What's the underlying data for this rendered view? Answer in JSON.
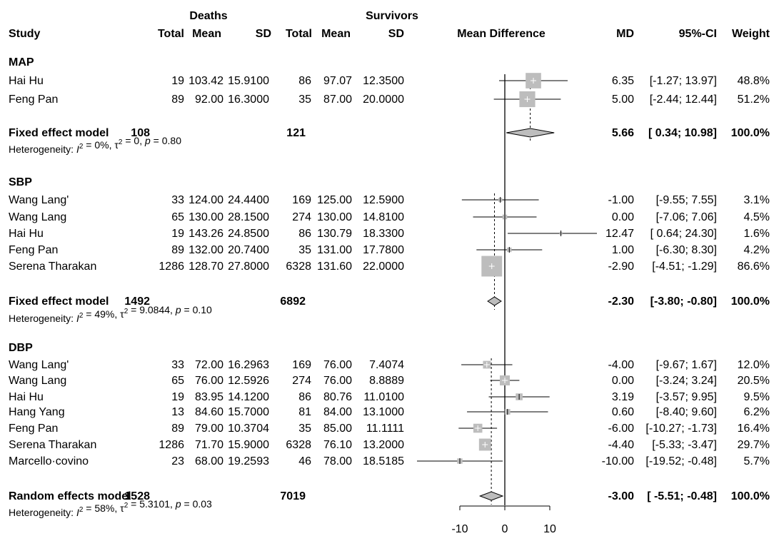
{
  "header": {
    "deaths": "Deaths",
    "survivors": "Survivors",
    "columns": [
      "Study",
      "Total",
      "Mean",
      "SD",
      "Total",
      "Mean",
      "SD",
      "Mean Difference",
      "MD",
      "95%-CI",
      "Weight"
    ]
  },
  "chart_data": {
    "type": "forest",
    "xaxis": {
      "ticks": [
        -10,
        0,
        10
      ],
      "labels": [
        "-10",
        "0",
        "10"
      ],
      "range": [
        -10,
        10
      ]
    },
    "groups": [
      {
        "name": "MAP",
        "studies": [
          {
            "study": "Hai Hu",
            "d_total": "19",
            "d_mean": "103.42",
            "d_sd": "15.9100",
            "s_total": "86",
            "s_mean": "97.07",
            "s_sd": "12.3500",
            "md": 6.35,
            "lo": -1.27,
            "hi": 13.97,
            "md_text": "6.35",
            "ci_text": "[-1.27; 13.97]",
            "weight": 48.8,
            "weight_text": "48.8%"
          },
          {
            "study": "Feng Pan",
            "d_total": "89",
            "d_mean": "92.00",
            "d_sd": "16.3000",
            "s_total": "35",
            "s_mean": "87.00",
            "s_sd": "20.0000",
            "md": 5.0,
            "lo": -2.44,
            "hi": 12.44,
            "md_text": "5.00",
            "ci_text": "[-2.44; 12.44]",
            "weight": 51.2,
            "weight_text": "51.2%"
          }
        ],
        "pooled": {
          "label": "Fixed effect model",
          "d_total": "108",
          "s_total": "121",
          "md": 5.66,
          "lo": 0.34,
          "hi": 10.98,
          "md_text": "5.66",
          "ci_text": "[ 0.34; 10.98]",
          "weight_text": "100.0%"
        },
        "het": {
          "prefix": "Heterogeneity: ",
          "i2": "I",
          "i2_val": " = 0%, ",
          "tau": "τ",
          "tau_val": " = 0, ",
          "p": "p",
          "p_val": " = 0.80"
        }
      },
      {
        "name": "SBP",
        "studies": [
          {
            "study": "Wang Lang'",
            "d_total": "33",
            "d_mean": "124.00",
            "d_sd": "24.4400",
            "s_total": "169",
            "s_mean": "125.00",
            "s_sd": "12.5900",
            "md": -1.0,
            "lo": -9.55,
            "hi": 7.55,
            "md_text": "-1.00",
            "ci_text": "[-9.55; 7.55]",
            "weight": 3.1,
            "weight_text": "3.1%"
          },
          {
            "study": "Wang Lang",
            "d_total": "65",
            "d_mean": "130.00",
            "d_sd": "28.1500",
            "s_total": "274",
            "s_mean": "130.00",
            "s_sd": "14.8100",
            "md": 0.0,
            "lo": -7.06,
            "hi": 7.06,
            "md_text": "0.00",
            "ci_text": "[-7.06; 7.06]",
            "weight": 4.5,
            "weight_text": "4.5%"
          },
          {
            "study": "Hai Hu",
            "d_total": "19",
            "d_mean": "143.26",
            "d_sd": "24.8500",
            "s_total": "86",
            "s_mean": "130.79",
            "s_sd": "18.3300",
            "md": 12.47,
            "lo": 0.64,
            "hi": 24.3,
            "md_text": "12.47",
            "ci_text": "[ 0.64; 24.30]",
            "weight": 1.6,
            "weight_text": "1.6%"
          },
          {
            "study": "Feng Pan",
            "d_total": "89",
            "d_mean": "132.00",
            "d_sd": "20.7400",
            "s_total": "35",
            "s_mean": "131.00",
            "s_sd": "17.7800",
            "md": 1.0,
            "lo": -6.3,
            "hi": 8.3,
            "md_text": "1.00",
            "ci_text": "[-6.30; 8.30]",
            "weight": 4.2,
            "weight_text": "4.2%"
          },
          {
            "study": "Serena Tharakan",
            "d_total": "1286",
            "d_mean": "128.70",
            "d_sd": "27.8000",
            "s_total": "6328",
            "s_mean": "131.60",
            "s_sd": "22.0000",
            "md": -2.9,
            "lo": -4.51,
            "hi": -1.29,
            "md_text": "-2.90",
            "ci_text": "[-4.51; -1.29]",
            "weight": 86.6,
            "weight_text": "86.6%"
          }
        ],
        "pooled": {
          "label": "Fixed effect model",
          "d_total": "1492",
          "s_total": "6892",
          "md": -2.3,
          "lo": -3.8,
          "hi": -0.8,
          "md_text": "-2.30",
          "ci_text": "[-3.80; -0.80]",
          "weight_text": "100.0%"
        },
        "het": {
          "prefix": "Heterogeneity: ",
          "i2": "I",
          "i2_val": " = 49%, ",
          "tau": "τ",
          "tau_val": " = 9.0844, ",
          "p": "p",
          "p_val": " = 0.10"
        }
      },
      {
        "name": "DBP",
        "studies": [
          {
            "study": "Wang Lang'",
            "d_total": "33",
            "d_mean": "72.00",
            "d_sd": "16.2963",
            "s_total": "169",
            "s_mean": "76.00",
            "s_sd": "7.4074",
            "md": -4.0,
            "lo": -9.67,
            "hi": 1.67,
            "md_text": "-4.00",
            "ci_text": "[-9.67; 1.67]",
            "weight": 12.0,
            "weight_text": "12.0%"
          },
          {
            "study": "Wang Lang",
            "d_total": "65",
            "d_mean": "76.00",
            "d_sd": "12.5926",
            "s_total": "274",
            "s_mean": "76.00",
            "s_sd": "8.8889",
            "md": 0.0,
            "lo": -3.24,
            "hi": 3.24,
            "md_text": "0.00",
            "ci_text": "[-3.24; 3.24]",
            "weight": 20.5,
            "weight_text": "20.5%"
          },
          {
            "study": "Hai Hu",
            "d_total": "19",
            "d_mean": "83.95",
            "d_sd": "14.1200",
            "s_total": "86",
            "s_mean": "80.76",
            "s_sd": "11.0100",
            "md": 3.19,
            "lo": -3.57,
            "hi": 9.95,
            "md_text": "3.19",
            "ci_text": "[-3.57; 9.95]",
            "weight": 9.5,
            "weight_text": "9.5%"
          },
          {
            "study": "Hang Yang",
            "d_total": "13",
            "d_mean": "84.60",
            "d_sd": "15.7000",
            "s_total": "81",
            "s_mean": "84.00",
            "s_sd": "13.1000",
            "md": 0.6,
            "lo": -8.4,
            "hi": 9.6,
            "md_text": "0.60",
            "ci_text": "[-8.40; 9.60]",
            "weight": 6.2,
            "weight_text": "6.2%"
          },
          {
            "study": "Feng Pan",
            "d_total": "89",
            "d_mean": "79.00",
            "d_sd": "10.3704",
            "s_total": "35",
            "s_mean": "85.00",
            "s_sd": "11.1111",
            "md": -6.0,
            "lo": -10.27,
            "hi": -1.73,
            "md_text": "-6.00",
            "ci_text": "[-10.27; -1.73]",
            "weight": 16.4,
            "weight_text": "16.4%"
          },
          {
            "study": "Serena Tharakan",
            "d_total": "1286",
            "d_mean": "71.70",
            "d_sd": "15.9000",
            "s_total": "6328",
            "s_mean": "76.10",
            "s_sd": "13.2000",
            "md": -4.4,
            "lo": -5.33,
            "hi": -3.47,
            "md_text": "-4.40",
            "ci_text": "[-5.33; -3.47]",
            "weight": 29.7,
            "weight_text": "29.7%"
          },
          {
            "study": "Marcello·covino",
            "d_total": "23",
            "d_mean": "68.00",
            "d_sd": "19.2593",
            "s_total": "46",
            "s_mean": "78.00",
            "s_sd": "18.5185",
            "md": -10.0,
            "lo": -19.52,
            "hi": -0.48,
            "md_text": "-10.00",
            "ci_text": "[-19.52; -0.48]",
            "weight": 5.7,
            "weight_text": "5.7%"
          }
        ],
        "pooled": {
          "label": "Random effects model",
          "d_total": "1528",
          "s_total": "7019",
          "md": -3.0,
          "lo": -5.51,
          "hi": -0.48,
          "md_text": "-3.00",
          "ci_text": "[ -5.51; -0.48]",
          "weight_text": "100.0%"
        },
        "het": {
          "prefix": "Heterogeneity: ",
          "i2": "I",
          "i2_val": " = 58%, ",
          "tau": "τ",
          "tau_val": " = 5.3101, ",
          "p": "p",
          "p_val": " = 0.03"
        }
      }
    ]
  }
}
